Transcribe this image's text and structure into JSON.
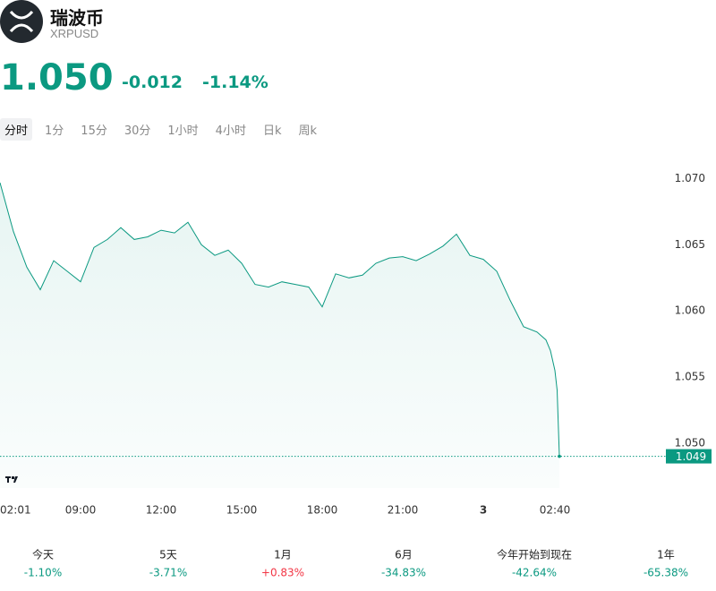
{
  "header": {
    "title": "瑞波币",
    "symbol": "XRPUSD",
    "price": "1.050",
    "change": "-0.012",
    "change_pct": "-1.14%"
  },
  "tabs": [
    "分时",
    "1分",
    "15分",
    "30分",
    "1小时",
    "4小时",
    "日k",
    "周k"
  ],
  "chart_data": {
    "type": "line",
    "color": "#0b9981",
    "x": [
      "06:00",
      "06:30",
      "07:00",
      "07:30",
      "08:00",
      "08:30",
      "09:00",
      "09:30",
      "10:00",
      "10:30",
      "11:00",
      "11:30",
      "12:00",
      "12:30",
      "13:00",
      "13:30",
      "14:00",
      "14:30",
      "15:00",
      "15:30",
      "16:00",
      "16:30",
      "17:00",
      "17:30",
      "18:00",
      "18:30",
      "19:00",
      "19:30",
      "20:00",
      "20:30",
      "21:00",
      "21:30",
      "22:00",
      "22:30",
      "23:00",
      "23:30",
      "00:00",
      "00:30",
      "01:00",
      "01:30",
      "02:00",
      "02:20",
      "02:30",
      "02:40",
      "02:45",
      "02:50"
    ],
    "values": [
      1.0697,
      1.066,
      1.0633,
      1.0616,
      1.0638,
      1.063,
      1.0622,
      1.0648,
      1.0654,
      1.0663,
      1.0654,
      1.0656,
      1.0661,
      1.0659,
      1.0667,
      1.065,
      1.0642,
      1.0646,
      1.0636,
      1.062,
      1.0618,
      1.0622,
      1.062,
      1.0618,
      1.0603,
      1.0628,
      1.0625,
      1.0627,
      1.0636,
      1.064,
      1.0641,
      1.0638,
      1.0643,
      1.0649,
      1.0658,
      1.0642,
      1.0639,
      1.063,
      1.0608,
      1.0588,
      1.0584,
      1.0578,
      1.057,
      1.0555,
      1.054,
      1.049
    ],
    "xlim": [
      "06:00",
      "06:40"
    ],
    "x_start_label": "02:01",
    "xticks": [
      "09:00",
      "12:00",
      "15:00",
      "18:00",
      "21:00",
      {
        "value": "00:00",
        "label": "3"
      },
      "02:40"
    ],
    "ylim": [
      1.0466,
      1.072
    ],
    "yticks": [
      {
        "value": 1.05,
        "label": "1.050"
      },
      {
        "value": 1.055,
        "label": "1.055"
      },
      {
        "value": 1.06,
        "label": "1.060"
      },
      {
        "value": 1.065,
        "label": "1.065"
      },
      {
        "value": 1.07,
        "label": "1.070"
      }
    ],
    "last_label": {
      "value": 1.049,
      "label": "1.049"
    }
  },
  "performance": [
    {
      "label": "今天",
      "value": "-1.10%",
      "color": "#0b9981"
    },
    {
      "label": "5天",
      "value": "-3.71%",
      "color": "#0b9981"
    },
    {
      "label": "1月",
      "value": "+0.83%",
      "color": "#f23645"
    },
    {
      "label": "6月",
      "value": "-34.83%",
      "color": "#0b9981"
    },
    {
      "label": "今年开始到现在",
      "value": "-42.64%",
      "color": "#0b9981"
    },
    {
      "label": "1年",
      "value": "-65.38%",
      "color": "#0b9981"
    }
  ]
}
